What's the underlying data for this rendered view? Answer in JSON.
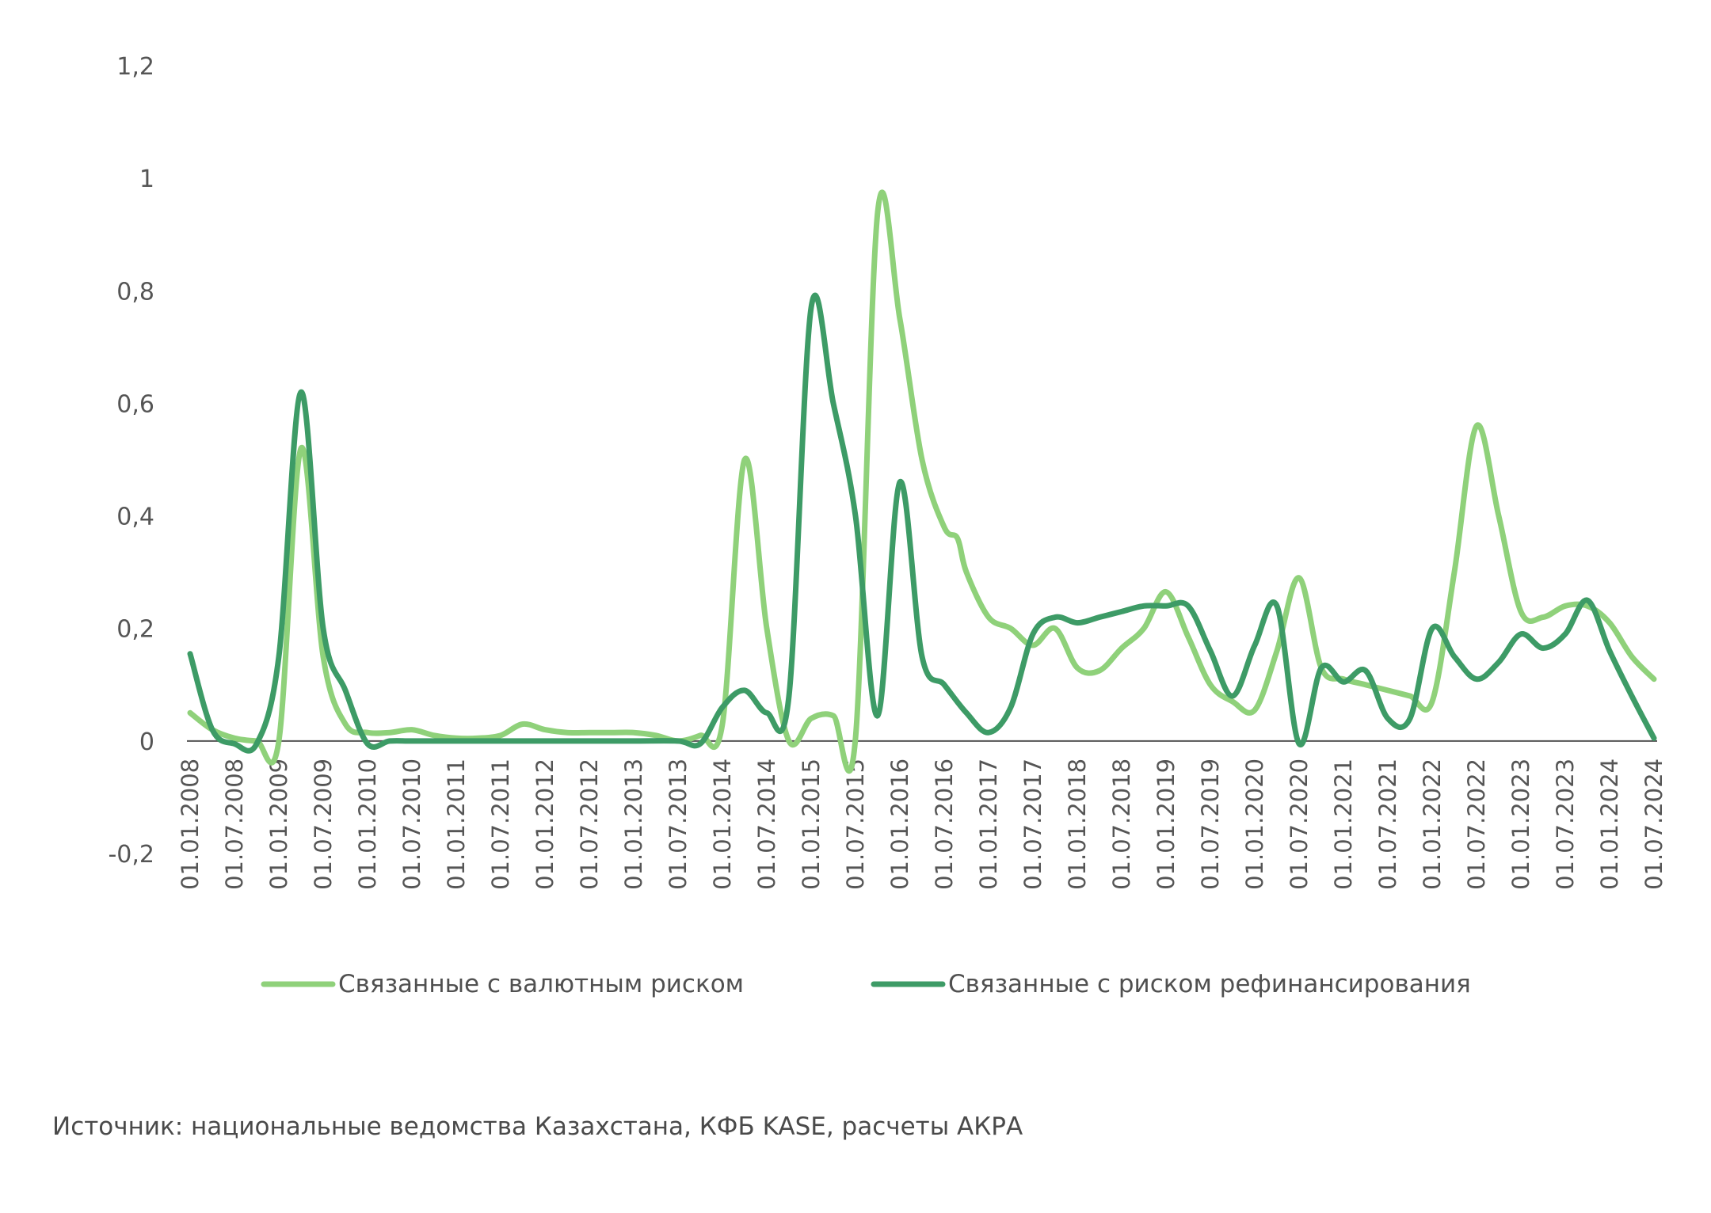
{
  "chart_data": {
    "type": "line",
    "title": "",
    "xlabel": "",
    "ylabel": "",
    "ylim": [
      -0.2,
      1.2
    ],
    "yticks": [
      -0.2,
      0,
      0.2,
      0.4,
      0.6,
      0.8,
      1,
      1.2
    ],
    "ytick_labels": [
      "-0,2",
      "0",
      "0,2",
      "0,4",
      "0,6",
      "0,8",
      "1",
      "1,2"
    ],
    "categories": [
      "01.01.2008",
      "01.07.2008",
      "01.01.2009",
      "01.07.2009",
      "01.01.2010",
      "01.07.2010",
      "01.01.2011",
      "01.07.2011",
      "01.01.2012",
      "01.07.2012",
      "01.01.2013",
      "01.07.2013",
      "01.01.2014",
      "01.07.2014",
      "01.01.2015",
      "01.07.2015",
      "01.01.2016",
      "01.07.2016",
      "01.01.2017",
      "01.07.2017",
      "01.01.2018",
      "01.07.2018",
      "01.01.2019",
      "01.07.2019",
      "01.01.2020",
      "01.07.2020",
      "01.01.2021",
      "01.07.2021",
      "01.01.2022",
      "01.07.2022",
      "01.01.2023",
      "01.07.2023",
      "01.01.2024",
      "01.07.2024"
    ],
    "series": [
      {
        "name": "Связанные с валютным риском",
        "color": "#8fd17a",
        "points": [
          [
            0,
            0.05
          ],
          [
            0.5,
            0.02
          ],
          [
            1,
            0.005
          ],
          [
            1.5,
            0
          ],
          [
            2,
            0
          ],
          [
            2.5,
            0.52
          ],
          [
            3,
            0.15
          ],
          [
            3.5,
            0.03
          ],
          [
            4,
            0.015
          ],
          [
            4.5,
            0.015
          ],
          [
            5,
            0.02
          ],
          [
            5.5,
            0.01
          ],
          [
            6,
            0.005
          ],
          [
            6.5,
            0.005
          ],
          [
            7,
            0.01
          ],
          [
            7.5,
            0.03
          ],
          [
            8,
            0.02
          ],
          [
            8.5,
            0.015
          ],
          [
            9,
            0.015
          ],
          [
            9.5,
            0.015
          ],
          [
            10,
            0.015
          ],
          [
            10.5,
            0.01
          ],
          [
            11,
            0
          ],
          [
            11.5,
            0.01
          ],
          [
            12,
            0.03
          ],
          [
            12.5,
            0.5
          ],
          [
            13,
            0.2
          ],
          [
            13.5,
            0
          ],
          [
            14,
            0.04
          ],
          [
            14.5,
            0.045
          ],
          [
            15,
            0.005
          ],
          [
            15.5,
            0.94
          ],
          [
            16,
            0.75
          ],
          [
            16.5,
            0.5
          ],
          [
            17,
            0.38
          ],
          [
            17.3,
            0.36
          ],
          [
            17.5,
            0.3
          ],
          [
            18,
            0.22
          ],
          [
            18.5,
            0.2
          ],
          [
            19,
            0.17
          ],
          [
            19.5,
            0.2
          ],
          [
            20,
            0.13
          ],
          [
            20.5,
            0.125
          ],
          [
            21,
            0.165
          ],
          [
            21.5,
            0.2
          ],
          [
            22,
            0.265
          ],
          [
            22.5,
            0.185
          ],
          [
            23,
            0.1
          ],
          [
            23.5,
            0.07
          ],
          [
            24,
            0.055
          ],
          [
            24.5,
            0.16
          ],
          [
            25,
            0.29
          ],
          [
            25.5,
            0.13
          ],
          [
            26,
            0.11
          ],
          [
            26.5,
            0.1
          ],
          [
            27,
            0.09
          ],
          [
            27.5,
            0.08
          ],
          [
            28,
            0.07
          ],
          [
            28.5,
            0.3
          ],
          [
            29,
            0.56
          ],
          [
            29.5,
            0.4
          ],
          [
            30,
            0.23
          ],
          [
            30.5,
            0.22
          ],
          [
            31,
            0.24
          ],
          [
            31.5,
            0.24
          ],
          [
            32,
            0.21
          ],
          [
            32.5,
            0.15
          ],
          [
            33,
            0.11
          ]
        ]
      },
      {
        "name": "Связанные с риском рефинансирования",
        "color": "#3d9b66",
        "points": [
          [
            0,
            0.155
          ],
          [
            0.5,
            0.02
          ],
          [
            1,
            -0.005
          ],
          [
            1.5,
            -0.005
          ],
          [
            2,
            0.15
          ],
          [
            2.5,
            0.62
          ],
          [
            3,
            0.2
          ],
          [
            3.5,
            0.09
          ],
          [
            4,
            -0.005
          ],
          [
            4.5,
            0
          ],
          [
            5,
            0
          ],
          [
            6,
            0
          ],
          [
            7,
            0
          ],
          [
            8,
            0
          ],
          [
            9,
            0
          ],
          [
            10,
            0
          ],
          [
            11,
            0
          ],
          [
            11.5,
            -0.005
          ],
          [
            12,
            0.06
          ],
          [
            12.5,
            0.09
          ],
          [
            13,
            0.05
          ],
          [
            13.5,
            0.08
          ],
          [
            14,
            0.77
          ],
          [
            14.5,
            0.6
          ],
          [
            15,
            0.4
          ],
          [
            15.5,
            0.045
          ],
          [
            16,
            0.46
          ],
          [
            16.5,
            0.15
          ],
          [
            17,
            0.1
          ],
          [
            17.5,
            0.05
          ],
          [
            18,
            0.015
          ],
          [
            18.5,
            0.06
          ],
          [
            19,
            0.19
          ],
          [
            19.5,
            0.22
          ],
          [
            20,
            0.21
          ],
          [
            20.5,
            0.22
          ],
          [
            21,
            0.23
          ],
          [
            21.5,
            0.24
          ],
          [
            22,
            0.24
          ],
          [
            22.5,
            0.24
          ],
          [
            23,
            0.16
          ],
          [
            23.5,
            0.08
          ],
          [
            24,
            0.17
          ],
          [
            24.5,
            0.24
          ],
          [
            25,
            -0.005
          ],
          [
            25.5,
            0.13
          ],
          [
            26,
            0.105
          ],
          [
            26.5,
            0.125
          ],
          [
            27,
            0.04
          ],
          [
            27.5,
            0.04
          ],
          [
            28,
            0.2
          ],
          [
            28.5,
            0.15
          ],
          [
            29,
            0.11
          ],
          [
            29.5,
            0.14
          ],
          [
            30,
            0.19
          ],
          [
            30.5,
            0.165
          ],
          [
            31,
            0.19
          ],
          [
            31.5,
            0.25
          ],
          [
            32,
            0.16
          ],
          [
            32.5,
            0.08
          ],
          [
            33,
            0.005
          ]
        ]
      }
    ],
    "grid": false,
    "legend_position": "bottom"
  },
  "source_note": "Источник: национальные ведомства Казахстана, КФБ KASE, расчеты АКРА"
}
